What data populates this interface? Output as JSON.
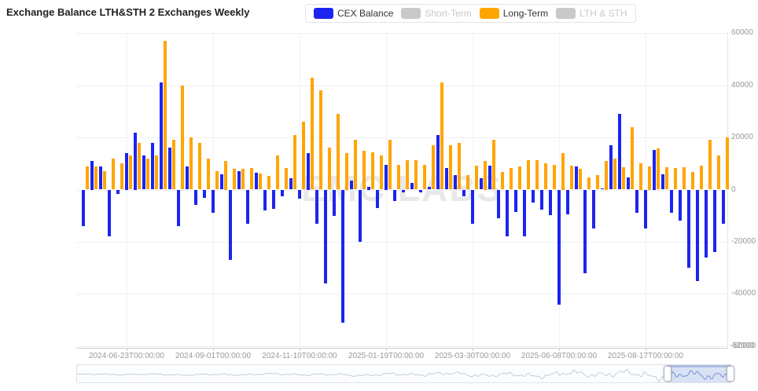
{
  "title": "Exchange Balance LTH&STH 2 Exchanges Weekly",
  "watermark": "EMC LABS",
  "legend": {
    "items": [
      {
        "name": "cex-balance",
        "label": "CEX Balance",
        "color": "#1c24ef",
        "active": true
      },
      {
        "name": "short-term",
        "label": "Short-Term",
        "color": "#c9c9c9",
        "active": false
      },
      {
        "name": "long-term",
        "label": "Long-Term",
        "color": "#ffa502",
        "active": true
      },
      {
        "name": "lth-sth",
        "label": "LTH & STH",
        "color": "#c9c9c9",
        "active": false
      }
    ]
  },
  "chart_data": {
    "type": "bar",
    "title": "Exchange Balance LTH&STH 2 Exchanges Weekly",
    "x_interval": "weekly",
    "n_weeks": 75,
    "x_start_date": "2024-05-19",
    "xticks": [
      {
        "week_index": 5,
        "label": "2024-06-23T00:00:00"
      },
      {
        "week_index": 15,
        "label": "2024-09-01T00:00:00"
      },
      {
        "week_index": 25,
        "label": "2024-11-10T00:00:00"
      },
      {
        "week_index": 35,
        "label": "2025-01-19T00:00:00"
      },
      {
        "week_index": 45,
        "label": "2025-03-30T00:00:00"
      },
      {
        "week_index": 55,
        "label": "2025-06-08T00:00:00"
      },
      {
        "week_index": 65,
        "label": "2025-08-17T00:00:00"
      }
    ],
    "yticks": [
      60000,
      40000,
      20000,
      0,
      -20000,
      -40000
    ],
    "y_bottom_overlapping_labels": [
      "-52000",
      "-60000"
    ],
    "ylim": [
      -61000,
      63500
    ],
    "grid": true,
    "legend_position": "top-center",
    "series": [
      {
        "name": "CEX Balance",
        "color": "#1c24ef",
        "values": [
          -14000,
          11000,
          9000,
          -18000,
          -1500,
          14000,
          22000,
          13000,
          18000,
          41000,
          16000,
          -14000,
          9000,
          -6000,
          -3000,
          -9000,
          6000,
          -27000,
          7000,
          -13000,
          6500,
          -8000,
          -7500,
          -2500,
          4500,
          -3500,
          14000,
          -13000,
          -36000,
          -10000,
          -51000,
          3500,
          -20000,
          1200,
          -7000,
          9500,
          -4300,
          -1000,
          2500,
          -1000,
          1000,
          21000,
          8300,
          5600,
          -2500,
          -13000,
          4500,
          9300,
          -11000,
          -18000,
          -8500,
          -18000,
          -4900,
          -7600,
          -9900,
          -44000,
          -9600,
          8800,
          -32000,
          -15000,
          500,
          17000,
          29000,
          4600,
          -8900,
          -15000,
          15200,
          5900,
          -8900,
          -12000,
          -30000,
          -35000,
          -26000,
          -24000,
          -13000
        ]
      },
      {
        "name": "Long-Term",
        "color": "#ffa502",
        "values": [
          9000,
          9000,
          7000,
          12000,
          10000,
          13000,
          18000,
          12000,
          13000,
          57000,
          19000,
          40000,
          20000,
          18000,
          12000,
          7000,
          11000,
          8000,
          8000,
          8300,
          6300,
          5300,
          13000,
          8300,
          21000,
          26000,
          43000,
          38000,
          16000,
          29000,
          14000,
          19000,
          15000,
          14400,
          13000,
          19000,
          9400,
          11200,
          11400,
          9600,
          17000,
          41000,
          17000,
          18000,
          5600,
          9300,
          11000,
          19000,
          6900,
          8300,
          8800,
          11400,
          11200,
          10000,
          9600,
          14000,
          9100,
          7900,
          4600,
          5600,
          11000,
          12000,
          8600,
          24000,
          10100,
          8900,
          15700,
          8600,
          8300,
          8600,
          6900,
          9100,
          19000,
          13000,
          20000
        ]
      },
      {
        "name": "Short-Term",
        "color": "#c9c9c9",
        "hidden": true,
        "values": []
      },
      {
        "name": "LTH & STH",
        "color": "#c9c9c9",
        "hidden": true,
        "values": []
      }
    ]
  },
  "slider": {
    "window_pct": [
      90.4,
      100
    ]
  }
}
